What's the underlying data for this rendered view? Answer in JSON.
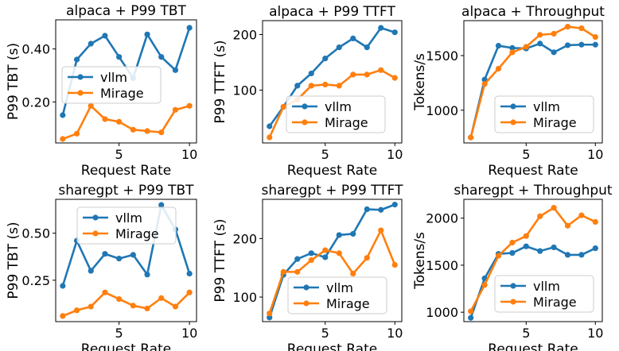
{
  "colors": {
    "vllm": "#1f77b4",
    "mirage": "#ff7f0e",
    "axis": "#000000"
  },
  "chart_data": [
    {
      "type": "line",
      "title": "alpaca + P99 TBT",
      "xlabel": "Request Rate",
      "ylabel": "P99 TBT (s)",
      "xlim": [
        0.5,
        10.5
      ],
      "ylim": [
        0.045,
        0.51
      ],
      "xticks": [
        5,
        10
      ],
      "yticks": [
        0.2,
        0.4
      ],
      "ytick_labels": [
        "0.20",
        "0.40"
      ],
      "legend": "center-left",
      "x": [
        1,
        2,
        3,
        4,
        5,
        6,
        7,
        8,
        9,
        10
      ],
      "series": [
        {
          "name": "vllm",
          "values": [
            0.15,
            0.36,
            0.42,
            0.45,
            0.37,
            0.29,
            0.455,
            0.37,
            0.32,
            0.48
          ]
        },
        {
          "name": "Mirage",
          "values": [
            0.06,
            0.08,
            0.185,
            0.135,
            0.125,
            0.095,
            0.09,
            0.085,
            0.17,
            0.185
          ]
        }
      ]
    },
    {
      "type": "line",
      "title": "alpaca + P99 TTFT",
      "xlabel": "Request Rate",
      "ylabel": "P99 TTFT (s)",
      "xlim": [
        0.5,
        10.5
      ],
      "ylim": [
        5,
        225
      ],
      "xticks": [
        5,
        10
      ],
      "yticks": [
        100,
        200
      ],
      "ytick_labels": [
        "100",
        "200"
      ],
      "legend": "bottom-right",
      "x": [
        1,
        2,
        3,
        4,
        5,
        6,
        7,
        8,
        9,
        10
      ],
      "series": [
        {
          "name": "vllm",
          "values": [
            35,
            70,
            108,
            130,
            157,
            177,
            193,
            177,
            212,
            204
          ]
        },
        {
          "name": "Mirage",
          "values": [
            15,
            70,
            83,
            108,
            110,
            108,
            128,
            128,
            136,
            122
          ]
        }
      ]
    },
    {
      "type": "line",
      "title": "alpaca + Throughput",
      "xlabel": "Request Rate",
      "ylabel": "Tokens/s",
      "xlim": [
        0.5,
        10.5
      ],
      "ylim": [
        700,
        1820
      ],
      "xticks": [
        5,
        10
      ],
      "yticks": [
        1000,
        1500
      ],
      "ytick_labels": [
        "1000",
        "1500"
      ],
      "legend": "bottom-right",
      "x": [
        1,
        2,
        3,
        4,
        5,
        6,
        7,
        8,
        9,
        10
      ],
      "series": [
        {
          "name": "vllm",
          "values": [
            750,
            1280,
            1590,
            1570,
            1565,
            1610,
            1530,
            1595,
            1600,
            1600
          ]
        },
        {
          "name": "Mirage",
          "values": [
            750,
            1240,
            1380,
            1530,
            1580,
            1690,
            1700,
            1765,
            1750,
            1670
          ]
        }
      ]
    },
    {
      "type": "line",
      "title": "sharegpt + P99 TBT",
      "xlabel": "Request Rate",
      "ylabel": "P99 TBT (s)",
      "xlim": [
        0.5,
        10.5
      ],
      "ylim": [
        0.03,
        0.68
      ],
      "xticks": [
        5,
        10
      ],
      "yticks": [
        0.25,
        0.5
      ],
      "ytick_labels": [
        "0.25",
        "0.50"
      ],
      "legend": "top-center",
      "x": [
        1,
        2,
        3,
        4,
        5,
        6,
        7,
        8,
        9,
        10
      ],
      "series": [
        {
          "name": "vllm",
          "values": [
            0.22,
            0.46,
            0.3,
            0.39,
            0.365,
            0.385,
            0.28,
            0.65,
            0.52,
            0.285
          ]
        },
        {
          "name": "Mirage",
          "values": [
            0.06,
            0.09,
            0.11,
            0.185,
            0.15,
            0.115,
            0.1,
            0.155,
            0.11,
            0.185
          ]
        }
      ]
    },
    {
      "type": "line",
      "title": "sharegpt + P99 TTFT",
      "xlabel": "Request Rate",
      "ylabel": "P99 TTFT (s)",
      "xlim": [
        0.5,
        10.5
      ],
      "ylim": [
        58,
        267
      ],
      "xticks": [
        5,
        10
      ],
      "yticks": [
        100,
        200
      ],
      "ytick_labels": [
        "100",
        "200"
      ],
      "legend": "bottom-right",
      "x": [
        1,
        2,
        3,
        4,
        5,
        6,
        7,
        8,
        9,
        10
      ],
      "series": [
        {
          "name": "vllm",
          "values": [
            65,
            138,
            165,
            175,
            168,
            206,
            208,
            250,
            249,
            258
          ]
        },
        {
          "name": "Mirage",
          "values": [
            72,
            143,
            143,
            163,
            180,
            175,
            140,
            167,
            214,
            155
          ]
        }
      ]
    },
    {
      "type": "line",
      "title": "sharegpt + Throughput",
      "xlabel": "Request Rate",
      "ylabel": "Tokens/s",
      "xlim": [
        0.5,
        10.5
      ],
      "ylim": [
        900,
        2200
      ],
      "xticks": [
        5,
        10
      ],
      "yticks": [
        1000,
        1500,
        2000
      ],
      "ytick_labels": [
        "1000",
        "1500",
        "2000"
      ],
      "legend": "bottom-right",
      "x": [
        1,
        2,
        3,
        4,
        5,
        6,
        7,
        8,
        9,
        10
      ],
      "series": [
        {
          "name": "vllm",
          "values": [
            940,
            1360,
            1620,
            1630,
            1700,
            1650,
            1690,
            1610,
            1610,
            1680
          ]
        },
        {
          "name": "Mirage",
          "values": [
            1010,
            1290,
            1600,
            1740,
            1810,
            2020,
            2110,
            1920,
            2030,
            1960
          ]
        }
      ]
    }
  ]
}
